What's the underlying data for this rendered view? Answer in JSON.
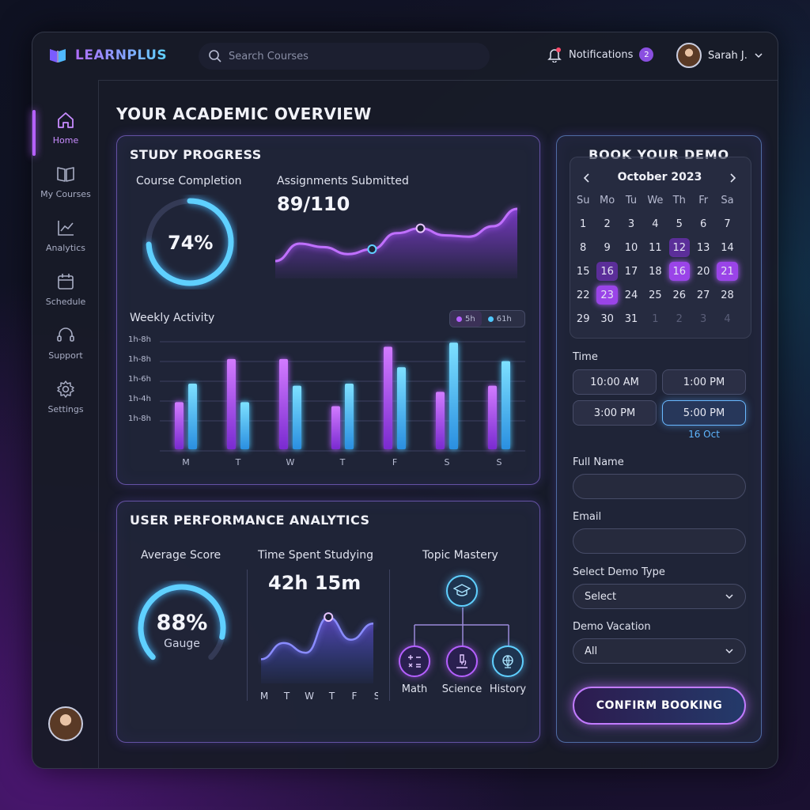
{
  "brand": {
    "name": "LEARNPLUS"
  },
  "search": {
    "placeholder": "Search Courses"
  },
  "header": {
    "notifications_label": "Notifications",
    "notifications_count": "2",
    "user_name": "Sarah J."
  },
  "sidebar": {
    "items": [
      {
        "label": "Home",
        "icon": "home-icon",
        "active": true
      },
      {
        "label": "My Courses",
        "icon": "book-icon"
      },
      {
        "label": "Analytics",
        "icon": "chart-icon"
      },
      {
        "label": "Schedule",
        "icon": "calendar-icon"
      },
      {
        "label": "Support",
        "icon": "headset-icon"
      },
      {
        "label": "Settings",
        "icon": "gear-icon"
      }
    ]
  },
  "page_title": "YOUR ACADEMIC OVERVIEW",
  "study": {
    "title": "STUDY PROGRESS",
    "completion_label": "Course Completion",
    "completion_value": "74%",
    "completion_fraction": 0.74,
    "assign_label": "Assignments Submitted",
    "assign_value": "89/110",
    "weekly_label": "Weekly Activity",
    "legend": [
      "5h",
      "61h"
    ]
  },
  "performance": {
    "title": "USER PERFORMANCE ANALYTICS",
    "avg_label": "Average Score",
    "avg_value": "88%",
    "avg_sub": "Gauge",
    "avg_fraction": 0.88,
    "time_label": "Time Spent Studying",
    "time_value": "42h 15m",
    "days": [
      "M",
      "T",
      "W",
      "T",
      "F",
      "S"
    ],
    "mastery_label": "Topic Mastery",
    "topics": [
      "Math",
      "Science",
      "History"
    ]
  },
  "booking": {
    "title": "BOOK YOUR DEMO",
    "month": "October 2023",
    "dows": [
      "Su",
      "Mo",
      "Tu",
      "We",
      "Th",
      "Fr",
      "Sa"
    ],
    "days": [
      [
        "1",
        "2",
        "3",
        "4",
        "5",
        "6",
        "7"
      ],
      [
        "8",
        "9",
        "10",
        "11",
        "12",
        "13",
        "14"
      ],
      [
        "15",
        "16",
        "17",
        "18",
        "16",
        "20",
        "21"
      ],
      [
        "22",
        "23",
        "24",
        "25",
        "26",
        "27",
        "28"
      ],
      [
        "29",
        "30",
        "31",
        "1",
        "2",
        "3",
        "4"
      ]
    ],
    "time_label": "Time",
    "slots": [
      "10:00 AM",
      "1:00 PM",
      "3:00 PM",
      "5:00 PM"
    ],
    "slot_note": "16 Oct",
    "name_label": "Full Name",
    "email_label": "Email",
    "type_label": "Select Demo Type",
    "type_value": "Select",
    "vacation_label": "Demo Vacation",
    "vacation_value": "All",
    "confirm_label": "CONFIRM BOOKING"
  },
  "chart_data": [
    {
      "type": "bar",
      "title": "Weekly Activity",
      "categories": [
        "M",
        "T",
        "W",
        "T",
        "F",
        "S",
        "S"
      ],
      "y_ticks": [
        "1h-8h",
        "1h-8h",
        "1h-6h",
        "1h-4h",
        "1h-8h"
      ],
      "series": [
        {
          "name": "5h",
          "color": "#b560ff",
          "values": [
            2.3,
            4.4,
            4.4,
            2.1,
            5.0,
            2.8,
            3.1
          ]
        },
        {
          "name": "61h",
          "color": "#4fc8ff",
          "values": [
            3.2,
            2.3,
            3.1,
            3.2,
            4.0,
            5.2,
            4.3
          ]
        }
      ]
    },
    {
      "type": "area",
      "title": "Assignments Submitted",
      "values": [
        0.25,
        0.5,
        0.45,
        0.35,
        0.42,
        0.65,
        0.72,
        0.62,
        0.6,
        0.75,
        1.0
      ]
    },
    {
      "type": "area",
      "title": "Time Spent Studying",
      "categories": [
        "M",
        "T",
        "W",
        "T",
        "F",
        "S"
      ],
      "values": [
        0.3,
        0.55,
        0.4,
        0.95,
        0.6,
        0.85
      ]
    }
  ]
}
